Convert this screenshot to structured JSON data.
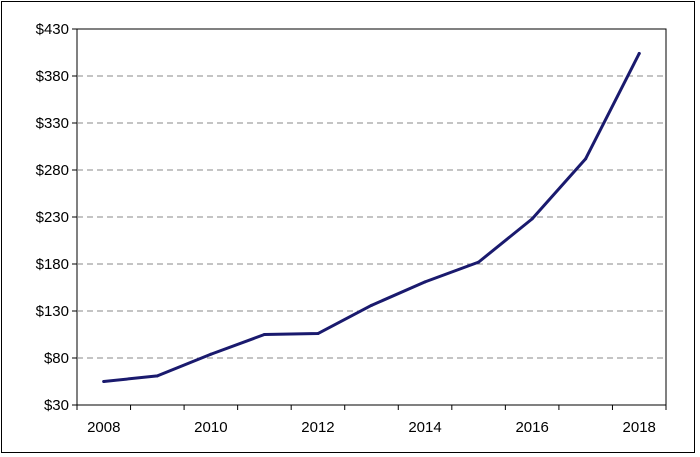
{
  "chart_data": {
    "type": "line",
    "title": "",
    "xlabel": "",
    "ylabel": "",
    "x": [
      2008,
      2009,
      2010,
      2011,
      2012,
      2013,
      2014,
      2015,
      2016,
      2017,
      2018
    ],
    "series": [
      {
        "values": [
          55,
          61,
          84,
          105,
          106,
          136,
          161,
          182,
          228,
          292,
          404
        ],
        "color": "#1a1a6e"
      }
    ],
    "xlim": [
      2007.5,
      2018.5
    ],
    "ylim": [
      30,
      430
    ],
    "x_ticks": [
      2008,
      2010,
      2012,
      2014,
      2016,
      2018
    ],
    "x_tick_labels": [
      "2008",
      "2010",
      "2012",
      "2014",
      "2016",
      "2018"
    ],
    "y_ticks": [
      30,
      80,
      130,
      180,
      230,
      280,
      330,
      380,
      430
    ],
    "y_tick_labels": [
      "$30",
      "$80",
      "$130",
      "$180",
      "$230",
      "$280",
      "$330",
      "$380",
      "$430"
    ],
    "grid": "horizontal dashed",
    "legend": "none"
  }
}
